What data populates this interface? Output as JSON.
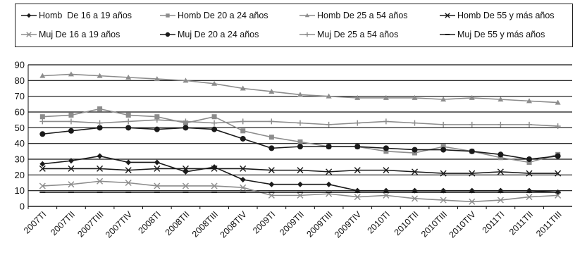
{
  "chart_data": {
    "type": "line",
    "title": "",
    "xlabel": "",
    "ylabel": "",
    "ylim": [
      0,
      90
    ],
    "yticks": [
      0,
      10,
      20,
      30,
      40,
      50,
      60,
      70,
      80,
      90
    ],
    "grid": "horizontal",
    "legend_position": "top",
    "categories": [
      "2007TI",
      "2007TII",
      "2007TIII",
      "2007TIV",
      "2008TI",
      "2008TII",
      "2008TIII",
      "2008TIV",
      "2009TI",
      "2009TII",
      "2009TIII",
      "2009TIV",
      "2010TI",
      "2010TII",
      "2010TIII",
      "2010TIV",
      "2011TI",
      "2011TII",
      "2011TIII"
    ],
    "series": [
      {
        "name": "Homb  De 16 a 19 años",
        "color": "#1a1a1a",
        "marker": "diamond",
        "values": [
          27,
          29,
          32,
          28,
          28,
          22,
          25,
          17,
          14,
          14,
          14,
          10,
          10,
          10,
          10,
          10,
          10,
          10,
          9
        ]
      },
      {
        "name": "Homb De 20 a 24 años",
        "color": "#8c8c8c",
        "marker": "square",
        "values": [
          57,
          58,
          62,
          58,
          57,
          53,
          57,
          48,
          44,
          41,
          38,
          38,
          35,
          34,
          38,
          35,
          31,
          28,
          33
        ]
      },
      {
        "name": "Homb De 25 a 54 años",
        "color": "#8c8c8c",
        "marker": "triangle",
        "values": [
          83,
          84,
          83,
          82,
          81,
          80,
          78,
          75,
          73,
          71,
          70,
          69,
          69,
          69,
          68,
          69,
          68,
          67,
          66
        ]
      },
      {
        "name": "Homb De 55 y más años",
        "color": "#1a1a1a",
        "marker": "x",
        "values": [
          24,
          24,
          24,
          23,
          24,
          24,
          24,
          24,
          23,
          23,
          22,
          23,
          23,
          22,
          21,
          21,
          22,
          21,
          21
        ]
      },
      {
        "name": "Muj De 16 a 19 años",
        "color": "#8c8c8c",
        "marker": "x",
        "values": [
          13,
          14,
          16,
          15,
          13,
          13,
          13,
          12,
          7,
          7,
          8,
          6,
          7,
          5,
          4,
          3,
          4,
          6,
          7
        ]
      },
      {
        "name": "Muj De 20 a 24 años",
        "color": "#1a1a1a",
        "marker": "circle",
        "values": [
          46,
          48,
          50,
          50,
          49,
          50,
          49,
          43,
          37,
          38,
          38,
          38,
          37,
          36,
          36,
          35,
          33,
          30,
          32
        ]
      },
      {
        "name": "Muj De 25 a 54 años",
        "color": "#8c8c8c",
        "marker": "plus",
        "values": [
          54,
          54,
          53,
          54,
          55,
          54,
          53,
          54,
          54,
          53,
          52,
          53,
          54,
          53,
          52,
          52,
          52,
          52,
          51
        ]
      },
      {
        "name": "Muj De 55 y más años",
        "color": "#1a1a1a",
        "marker": "dash",
        "values": [
          9,
          9,
          9,
          9,
          9,
          9,
          9,
          9,
          9,
          9,
          9,
          9,
          9,
          9,
          9,
          9,
          9,
          9,
          9
        ]
      }
    ]
  }
}
